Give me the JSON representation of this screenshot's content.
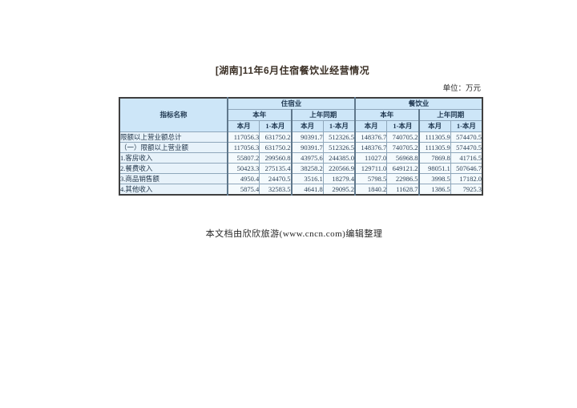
{
  "doc": {
    "title": "[湖南]11年6月住宿餐饮业经营情况",
    "unit_label": "单位：万元",
    "footer": "本文档由欣欣旅游(www.cncn.com)编辑整理"
  },
  "table": {
    "corner_header": "指标名称",
    "industry_headers": [
      "住宿业",
      "餐饮业"
    ],
    "period_headers": [
      "本年",
      "上年同期",
      "本年",
      "上年同期"
    ],
    "month_headers": [
      "本月",
      "1-本月",
      "本月",
      "1-本月",
      "本月",
      "1-本月",
      "本月",
      "1-本月"
    ],
    "rows": [
      {
        "label": "限额以上营业额总计",
        "values": [
          "117056.3",
          "631750.2",
          "90391.7",
          "512326.5",
          "148376.7",
          "740705.2",
          "111305.9",
          "574470.5"
        ]
      },
      {
        "label": "（一）限额以上营业额",
        "values": [
          "117056.3",
          "631750.2",
          "90391.7",
          "512326.5",
          "148376.7",
          "740705.2",
          "111305.9",
          "574470.5"
        ]
      },
      {
        "label": "1.客房收入",
        "values": [
          "55807.2",
          "299560.8",
          "43975.6",
          "244385.0",
          "11027.0",
          "56968.8",
          "7869.8",
          "41716.5"
        ]
      },
      {
        "label": "2.餐费收入",
        "values": [
          "50423.3",
          "275135.4",
          "38258.2",
          "220566.9",
          "129711.0",
          "649121.2",
          "98051.1",
          "507646.7"
        ]
      },
      {
        "label": "3.商品销售额",
        "values": [
          "4950.4",
          "24470.5",
          "3516.1",
          "18279.4",
          "5798.5",
          "22986.5",
          "3998.5",
          "17182.0"
        ]
      },
      {
        "label": "4.其他收入",
        "values": [
          "5875.4",
          "32583.5",
          "4641.8",
          "29095.2",
          "1840.2",
          "11628.7",
          "1386.5",
          "7925.3"
        ]
      }
    ]
  },
  "colors": {
    "header_bg": "#cde6f8",
    "label_bg": "#e7f2fa",
    "value_bg": "#f4fafd",
    "grid_line": "#8fa7bb",
    "group_line": "#60788c",
    "outer_border": "#3f3f3f",
    "table_text": "#2e4257",
    "page_bg": "#ffffff"
  }
}
